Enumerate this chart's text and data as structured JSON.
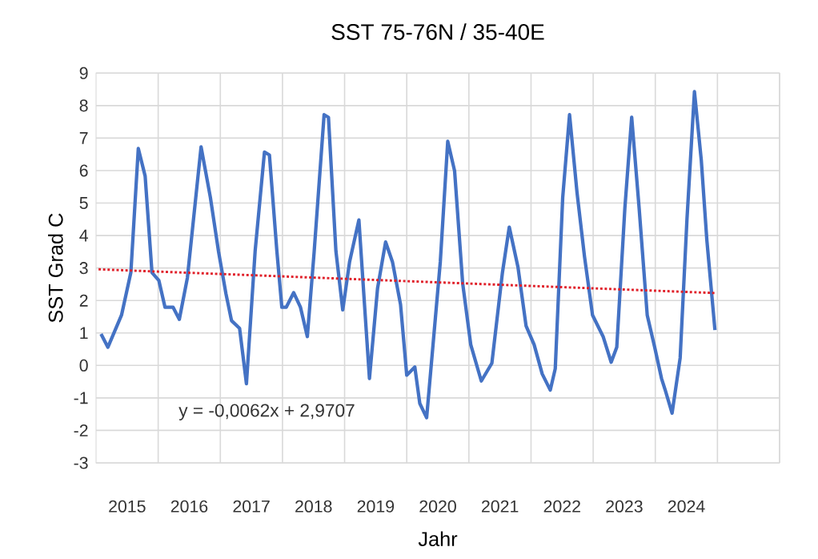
{
  "chart_data": {
    "type": "line",
    "title": "SST  75-76N / 35-40E",
    "xlabel": "Jahr",
    "ylabel": "SST Grad C",
    "xlim": [
      2015,
      2026
    ],
    "xticks": [
      {
        "value": 2015.5,
        "label": "2015"
      },
      {
        "value": 2016.5,
        "label": "2016"
      },
      {
        "value": 2017.5,
        "label": "2017"
      },
      {
        "value": 2018.5,
        "label": "2018"
      },
      {
        "value": 2019.5,
        "label": "2019"
      },
      {
        "value": 2020.5,
        "label": "2020"
      },
      {
        "value": 2021.5,
        "label": "2021"
      },
      {
        "value": 2022.5,
        "label": "2022"
      },
      {
        "value": 2023.5,
        "label": "2023"
      },
      {
        "value": 2024.5,
        "label": "2024"
      },
      {
        "value": 2016,
        "label": null
      },
      {
        "value": 2017,
        "label": null
      },
      {
        "value": 2018,
        "label": null
      },
      {
        "value": 2019,
        "label": null
      },
      {
        "value": 2020,
        "label": null
      },
      {
        "value": 2021,
        "label": null
      },
      {
        "value": 2022,
        "label": null
      },
      {
        "value": 2023,
        "label": null
      },
      {
        "value": 2024,
        "label": null
      },
      {
        "value": 2025,
        "label": null
      },
      {
        "value": 2026,
        "label": null
      }
    ],
    "ylim": [
      -3,
      9
    ],
    "yticks": [
      -3,
      -2,
      -1,
      0,
      1,
      2,
      3,
      4,
      5,
      6,
      7,
      8,
      9
    ],
    "grid": true,
    "annotations": [
      "y = -0,0062x + 2,9707"
    ],
    "series": [
      {
        "color": "#4472c4",
        "x": [
          2015.08,
          2015.19,
          2015.41,
          2015.56,
          2015.68,
          2015.79,
          2015.9,
          2016.01,
          2016.11,
          2016.24,
          2016.34,
          2016.47,
          2016.69,
          2016.84,
          2016.97,
          2017.09,
          2017.18,
          2017.31,
          2017.42,
          2017.56,
          2017.71,
          2017.79,
          2017.91,
          2017.99,
          2018.06,
          2018.18,
          2018.29,
          2018.4,
          2018.51,
          2018.67,
          2018.74,
          2018.86,
          2018.97,
          2019.08,
          2019.23,
          2019.32,
          2019.4,
          2019.53,
          2019.66,
          2019.77,
          2019.9,
          2020.0,
          2020.13,
          2020.21,
          2020.32,
          2020.54,
          2020.66,
          2020.77,
          2020.9,
          2021.03,
          2021.2,
          2021.37,
          2021.54,
          2021.65,
          2021.79,
          2021.92,
          2022.05,
          2022.18,
          2022.31,
          2022.39,
          2022.51,
          2022.62,
          2022.74,
          2022.86,
          2022.99,
          2023.16,
          2023.29,
          2023.38,
          2023.51,
          2023.62,
          2023.74,
          2023.87,
          2023.99,
          2024.1,
          2024.16,
          2024.27,
          2024.4,
          2024.51,
          2024.63,
          2024.74,
          2024.83,
          2024.96
        ],
        "values": [
          0.97,
          0.56,
          1.55,
          2.86,
          6.68,
          5.83,
          2.86,
          2.62,
          1.79,
          1.79,
          1.42,
          2.7,
          6.73,
          5.17,
          3.52,
          2.21,
          1.38,
          1.14,
          -0.56,
          3.52,
          6.57,
          6.48,
          3.52,
          1.79,
          1.79,
          2.24,
          1.79,
          0.89,
          3.5,
          7.72,
          7.64,
          3.52,
          1.71,
          3.19,
          4.48,
          1.88,
          -0.4,
          2.37,
          3.8,
          3.19,
          1.88,
          -0.3,
          -0.05,
          -1.17,
          -1.61,
          3.19,
          6.9,
          5.99,
          2.53,
          0.64,
          -0.48,
          0.07,
          2.86,
          4.26,
          3.03,
          1.22,
          0.64,
          -0.26,
          -0.76,
          -0.1,
          5.17,
          7.72,
          5.33,
          3.36,
          1.55,
          0.89,
          0.1,
          0.56,
          4.84,
          7.64,
          4.84,
          1.55,
          0.56,
          -0.4,
          -0.76,
          -1.47,
          0.23,
          4.51,
          8.43,
          6.32,
          3.85,
          1.09
        ]
      },
      {
        "type": "line",
        "color": "#e0202a",
        "line_style": "dotted",
        "x": [
          2015.04,
          2024.96
        ],
        "values": [
          2.96,
          2.23
        ]
      }
    ]
  }
}
